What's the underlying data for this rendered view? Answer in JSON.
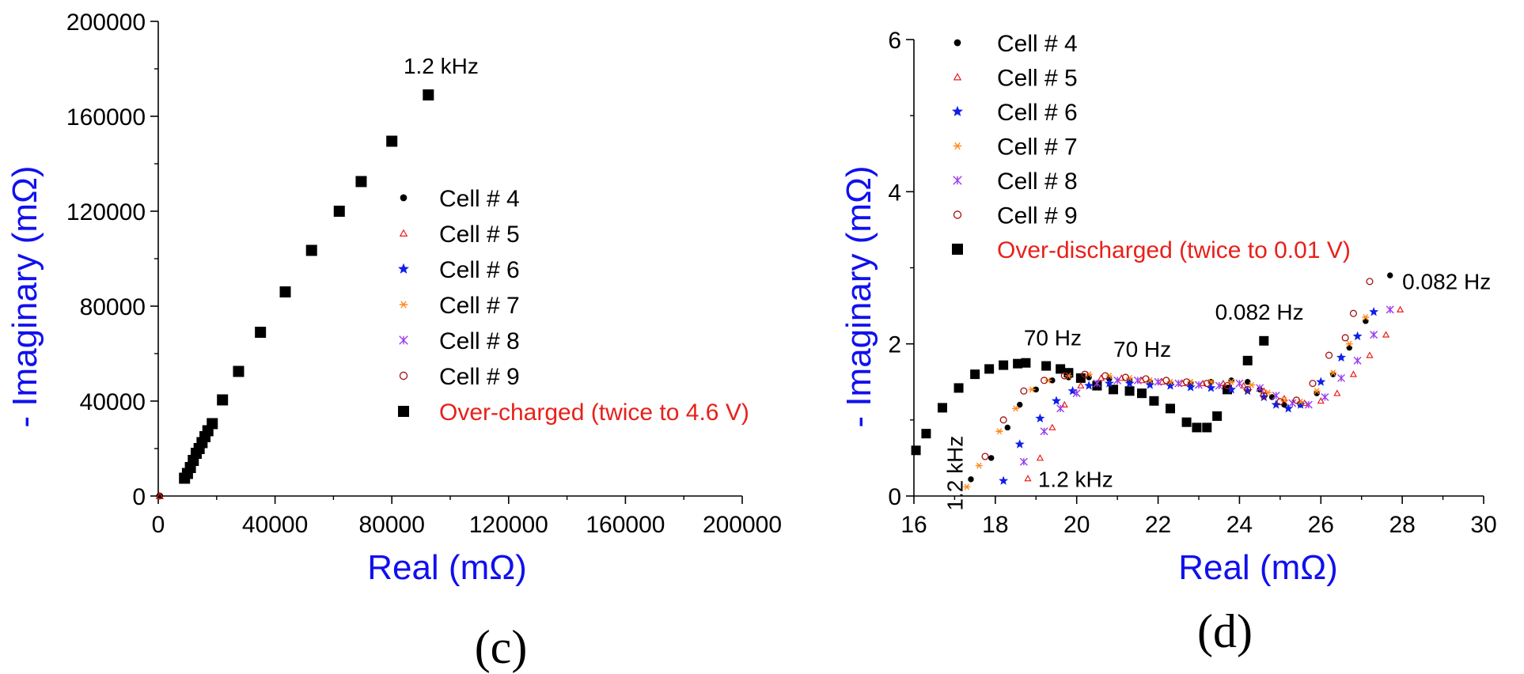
{
  "chart_data": [
    {
      "type": "scatter",
      "panel_label": "(c)",
      "xlabel": "Real (mΩ)",
      "ylabel": "- Imaginary (mΩ)",
      "xlim": [
        0,
        200000
      ],
      "ylim": [
        0,
        200000
      ],
      "xticks": [
        "0",
        "40000",
        "80000",
        "120000",
        "160000",
        "200000"
      ],
      "yticks": [
        "0",
        "40000",
        "80000",
        "120000",
        "160000",
        "200000"
      ],
      "legend_position": "center-right",
      "legend": [
        {
          "label": "Cell # 4",
          "marker": "dot",
          "color": "#000000",
          "text_color": "#000000"
        },
        {
          "label": "Cell # 5",
          "marker": "triangle-open",
          "color": "#e8201a",
          "text_color": "#000000"
        },
        {
          "label": "Cell # 6",
          "marker": "star",
          "color": "#0f1fe8",
          "text_color": "#000000"
        },
        {
          "label": "Cell # 7",
          "marker": "asterisk",
          "color": "#ff8a1c",
          "text_color": "#000000"
        },
        {
          "label": "Cell # 8",
          "marker": "x-star",
          "color": "#9a3af0",
          "text_color": "#000000"
        },
        {
          "label": "Cell # 9",
          "marker": "circle-open",
          "color": "#a01010",
          "text_color": "#000000"
        },
        {
          "label": "Over-charged (twice to 4.6 V)",
          "marker": "square",
          "color": "#000000",
          "text_color": "#e8201a"
        }
      ],
      "annotations": [
        {
          "text": "1.2 kHz",
          "x": 84000,
          "y": 178000
        }
      ],
      "series": [
        {
          "name": "Over-charged (twice to 4.6 V)",
          "marker": "square",
          "color": "#000000",
          "points": [
            [
              9000,
              7500
            ],
            [
              10000,
              9500
            ],
            [
              11000,
              12000
            ],
            [
              12000,
              15000
            ],
            [
              13000,
              18000
            ],
            [
              14000,
              20000
            ],
            [
              15000,
              22500
            ],
            [
              16000,
              25000
            ],
            [
              17000,
              27500
            ],
            [
              18500,
              30500
            ],
            [
              22000,
              40500
            ],
            [
              27500,
              52500
            ],
            [
              35000,
              69000
            ],
            [
              43500,
              86000
            ],
            [
              52500,
              103500
            ],
            [
              62000,
              120000
            ],
            [
              69500,
              132500
            ],
            [
              80000,
              149500
            ],
            [
              92500,
              169000
            ]
          ]
        },
        {
          "name": "Cell # 4",
          "marker": "dot",
          "color": "#000000",
          "points": [
            [
              500,
              0
            ]
          ]
        },
        {
          "name": "Cell # 5",
          "marker": "triangle-open",
          "color": "#e8201a",
          "points": [
            [
              500,
              0
            ]
          ]
        }
      ]
    },
    {
      "type": "scatter",
      "panel_label": "(d)",
      "xlabel": "Real (mΩ)",
      "ylabel": "- Imaginary (mΩ)",
      "xlim": [
        16,
        30
      ],
      "ylim": [
        0,
        6
      ],
      "xticks": [
        "16",
        "18",
        "20",
        "22",
        "24",
        "26",
        "28",
        "30"
      ],
      "yticks": [
        "0",
        "2",
        "4",
        "6"
      ],
      "legend_position": "top",
      "legend": [
        {
          "label": "Cell # 4",
          "marker": "dot",
          "color": "#000000",
          "text_color": "#000000"
        },
        {
          "label": "Cell # 5",
          "marker": "triangle-open",
          "color": "#e8201a",
          "text_color": "#000000"
        },
        {
          "label": "Cell # 6",
          "marker": "star",
          "color": "#0f1fe8",
          "text_color": "#000000"
        },
        {
          "label": "Cell # 7",
          "marker": "asterisk",
          "color": "#ff8a1c",
          "text_color": "#000000"
        },
        {
          "label": "Cell # 8",
          "marker": "x-star",
          "color": "#9a3af0",
          "text_color": "#000000"
        },
        {
          "label": "Cell # 9",
          "marker": "circle-open",
          "color": "#a01010",
          "text_color": "#000000"
        },
        {
          "label": "Over-discharged (twice to 0.01 V)",
          "marker": "square",
          "color": "#000000",
          "text_color": "#e8201a"
        }
      ],
      "annotations": [
        {
          "text": "70 Hz",
          "x": 18.7,
          "y": 1.98
        },
        {
          "text": "70 Hz",
          "x": 20.9,
          "y": 1.83
        },
        {
          "text": "0.082 Hz",
          "x": 23.4,
          "y": 2.32
        },
        {
          "text": "0.082 Hz",
          "x": 28.0,
          "y": 2.72
        },
        {
          "text": "1.2 kHz",
          "x": 19.05,
          "y": 0.12
        },
        {
          "text": "1.2 kHz",
          "x": 17.2,
          "y": 0.3,
          "rotate": -90
        }
      ],
      "series": [
        {
          "name": "Over-discharged (twice to 0.01 V)",
          "marker": "square",
          "color": "#000000",
          "points": [
            [
              16.05,
              0.6
            ],
            [
              16.3,
              0.82
            ],
            [
              16.7,
              1.16
            ],
            [
              17.1,
              1.42
            ],
            [
              17.5,
              1.6
            ],
            [
              17.85,
              1.67
            ],
            [
              18.2,
              1.72
            ],
            [
              18.55,
              1.74
            ],
            [
              18.75,
              1.75
            ],
            [
              19.25,
              1.71
            ],
            [
              19.6,
              1.67
            ],
            [
              19.8,
              1.62
            ],
            [
              20.1,
              1.55
            ],
            [
              20.5,
              1.45
            ],
            [
              20.9,
              1.4
            ],
            [
              21.3,
              1.38
            ],
            [
              21.6,
              1.35
            ],
            [
              21.9,
              1.25
            ],
            [
              22.3,
              1.15
            ],
            [
              22.7,
              0.97
            ],
            [
              22.95,
              0.9
            ],
            [
              23.2,
              0.9
            ],
            [
              23.45,
              1.05
            ],
            [
              23.7,
              1.4
            ],
            [
              24.2,
              1.78
            ],
            [
              24.6,
              2.04
            ]
          ]
        },
        {
          "name": "Cell # 4",
          "marker": "dot",
          "color": "#000000",
          "points": [
            [
              17.4,
              0.22
            ],
            [
              17.9,
              0.5
            ],
            [
              18.3,
              0.9
            ],
            [
              18.6,
              1.2
            ],
            [
              19,
              1.4
            ],
            [
              19.4,
              1.52
            ],
            [
              19.8,
              1.56
            ],
            [
              20.3,
              1.56
            ],
            [
              20.8,
              1.54
            ],
            [
              21.3,
              1.52
            ],
            [
              21.8,
              1.5
            ],
            [
              22.3,
              1.48
            ],
            [
              22.8,
              1.48
            ],
            [
              23.3,
              1.5
            ],
            [
              23.8,
              1.52
            ],
            [
              24.2,
              1.5
            ],
            [
              24.5,
              1.4
            ],
            [
              24.8,
              1.3
            ],
            [
              25.1,
              1.2
            ],
            [
              25.5,
              1.2
            ],
            [
              25.9,
              1.35
            ],
            [
              26.3,
              1.6
            ],
            [
              26.7,
              1.95
            ],
            [
              27.1,
              2.3
            ],
            [
              27.7,
              2.9
            ]
          ]
        },
        {
          "name": "Cell # 5",
          "marker": "triangle-open",
          "color": "#e8201a",
          "points": [
            [
              18.8,
              0.23
            ],
            [
              19.1,
              0.5
            ],
            [
              19.4,
              0.9
            ],
            [
              19.7,
              1.2
            ],
            [
              20.1,
              1.45
            ],
            [
              20.6,
              1.55
            ],
            [
              21.1,
              1.55
            ],
            [
              21.6,
              1.52
            ],
            [
              22.1,
              1.5
            ],
            [
              22.6,
              1.48
            ],
            [
              23.1,
              1.48
            ],
            [
              23.6,
              1.48
            ],
            [
              24.1,
              1.45
            ],
            [
              24.6,
              1.38
            ],
            [
              25.1,
              1.28
            ],
            [
              25.6,
              1.22
            ],
            [
              26,
              1.25
            ],
            [
              26.4,
              1.35
            ],
            [
              26.8,
              1.6
            ],
            [
              27.2,
              1.85
            ],
            [
              27.6,
              2.12
            ],
            [
              27.95,
              2.45
            ]
          ]
        },
        {
          "name": "Cell # 6",
          "marker": "star",
          "color": "#0f1fe8",
          "points": [
            [
              18.2,
              0.2
            ],
            [
              18.6,
              0.68
            ],
            [
              19.1,
              1.02
            ],
            [
              19.5,
              1.25
            ],
            [
              19.9,
              1.38
            ],
            [
              20.3,
              1.45
            ],
            [
              20.8,
              1.48
            ],
            [
              21.3,
              1.48
            ],
            [
              21.8,
              1.46
            ],
            [
              22.3,
              1.45
            ],
            [
              22.8,
              1.43
            ],
            [
              23.3,
              1.42
            ],
            [
              23.8,
              1.4
            ],
            [
              24.2,
              1.38
            ],
            [
              24.6,
              1.3
            ],
            [
              24.9,
              1.2
            ],
            [
              25.2,
              1.15
            ],
            [
              25.5,
              1.2
            ],
            [
              26,
              1.5
            ],
            [
              26.5,
              1.82
            ],
            [
              26.9,
              2.1
            ],
            [
              27.3,
              2.42
            ]
          ]
        },
        {
          "name": "Cell # 7",
          "marker": "asterisk",
          "color": "#ff8a1c",
          "points": [
            [
              17.3,
              0.12
            ],
            [
              17.6,
              0.4
            ],
            [
              18.1,
              0.85
            ],
            [
              18.5,
              1.15
            ],
            [
              18.9,
              1.4
            ],
            [
              19.3,
              1.52
            ],
            [
              19.8,
              1.58
            ],
            [
              20.3,
              1.6
            ],
            [
              20.8,
              1.58
            ],
            [
              21.3,
              1.55
            ],
            [
              21.8,
              1.52
            ],
            [
              22.3,
              1.5
            ],
            [
              22.8,
              1.5
            ],
            [
              23.3,
              1.5
            ],
            [
              23.8,
              1.5
            ],
            [
              24.3,
              1.46
            ],
            [
              24.7,
              1.36
            ],
            [
              25.1,
              1.26
            ],
            [
              25.5,
              1.24
            ],
            [
              25.9,
              1.38
            ],
            [
              26.3,
              1.62
            ],
            [
              26.7,
              2.0
            ],
            [
              27.1,
              2.35
            ]
          ]
        },
        {
          "name": "Cell # 8",
          "marker": "x-star",
          "color": "#9a3af0",
          "points": [
            [
              18.7,
              0.45
            ],
            [
              19.2,
              0.85
            ],
            [
              19.6,
              1.15
            ],
            [
              20,
              1.35
            ],
            [
              20.5,
              1.48
            ],
            [
              21,
              1.52
            ],
            [
              21.5,
              1.52
            ],
            [
              22,
              1.5
            ],
            [
              22.5,
              1.48
            ],
            [
              23,
              1.46
            ],
            [
              23.5,
              1.45
            ],
            [
              24,
              1.48
            ],
            [
              24.5,
              1.42
            ],
            [
              24.9,
              1.32
            ],
            [
              25.3,
              1.22
            ],
            [
              25.7,
              1.2
            ],
            [
              26.1,
              1.3
            ],
            [
              26.5,
              1.55
            ],
            [
              26.9,
              1.78
            ],
            [
              27.3,
              2.12
            ],
            [
              27.7,
              2.45
            ]
          ]
        },
        {
          "name": "Cell # 9",
          "marker": "circle-open",
          "color": "#a01010",
          "points": [
            [
              17.75,
              0.52
            ],
            [
              18.2,
              1.0
            ],
            [
              18.7,
              1.38
            ],
            [
              19.2,
              1.52
            ],
            [
              19.7,
              1.58
            ],
            [
              20.2,
              1.6
            ],
            [
              20.7,
              1.58
            ],
            [
              21.2,
              1.56
            ],
            [
              21.7,
              1.54
            ],
            [
              22.2,
              1.52
            ],
            [
              22.7,
              1.5
            ],
            [
              23.2,
              1.48
            ],
            [
              23.7,
              1.45
            ],
            [
              24.2,
              1.4
            ],
            [
              24.6,
              1.32
            ],
            [
              25,
              1.24
            ],
            [
              25.4,
              1.26
            ],
            [
              25.8,
              1.48
            ],
            [
              26.2,
              1.85
            ],
            [
              26.6,
              2.08
            ],
            [
              26.8,
              2.4
            ],
            [
              27.2,
              2.82
            ]
          ]
        }
      ]
    }
  ]
}
